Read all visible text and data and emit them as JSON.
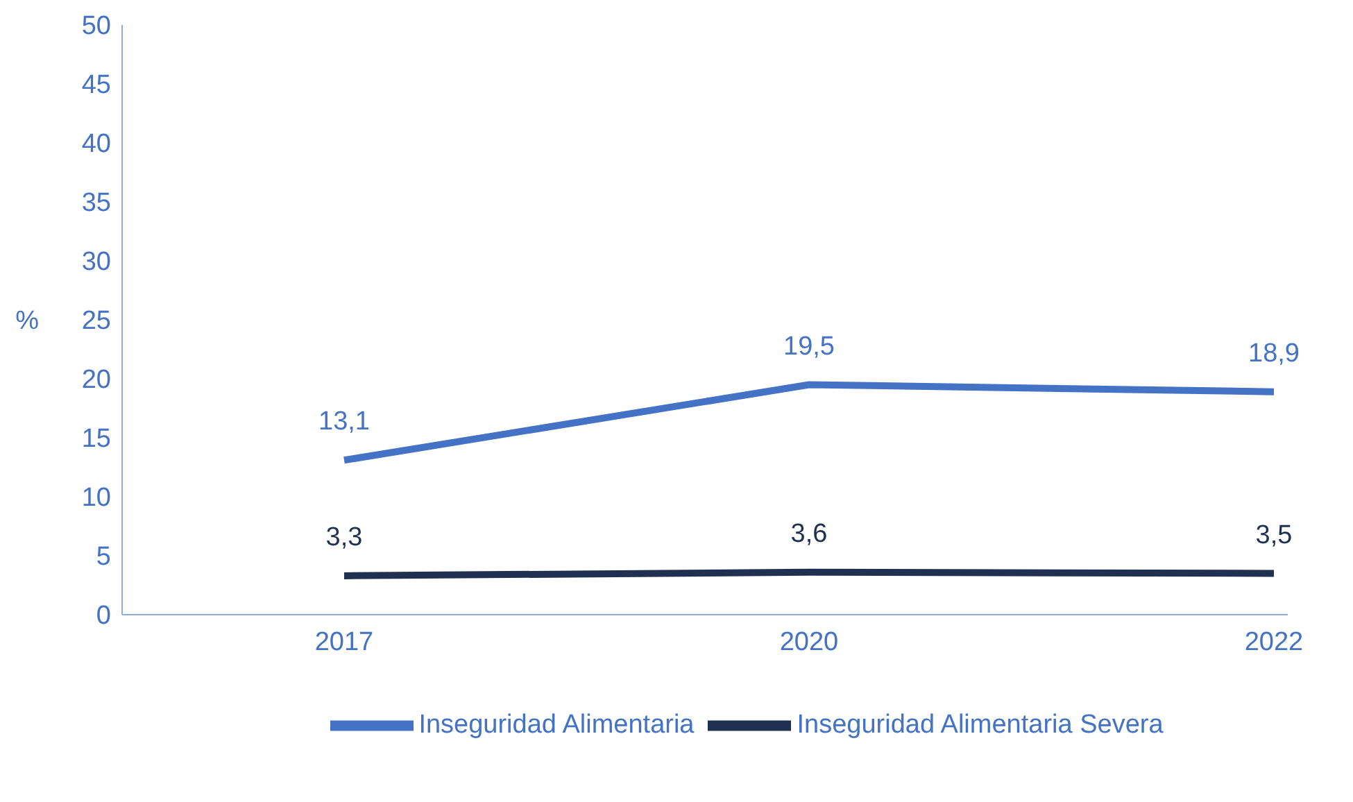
{
  "chart_data": {
    "type": "line",
    "ylabel": "%",
    "categories": [
      "2017",
      "2020",
      "2022"
    ],
    "series": [
      {
        "name": "Inseguridad Alimentaria",
        "color": "#4472c4",
        "values": [
          13.1,
          19.5,
          18.9
        ],
        "value_labels": [
          "13,1",
          "19,5",
          "18,9"
        ]
      },
      {
        "name": "Inseguridad Alimentaria Severa",
        "color": "#1f3050",
        "values": [
          3.3,
          3.6,
          3.5
        ],
        "value_labels": [
          "3,3",
          "3,6",
          "3,5"
        ]
      }
    ],
    "ylim": [
      0,
      50
    ],
    "yticks": [
      0,
      5,
      10,
      15,
      20,
      25,
      30,
      35,
      40,
      45,
      50
    ],
    "grid": false,
    "legend": "bottom",
    "marker": "none",
    "line_style": "solid"
  }
}
